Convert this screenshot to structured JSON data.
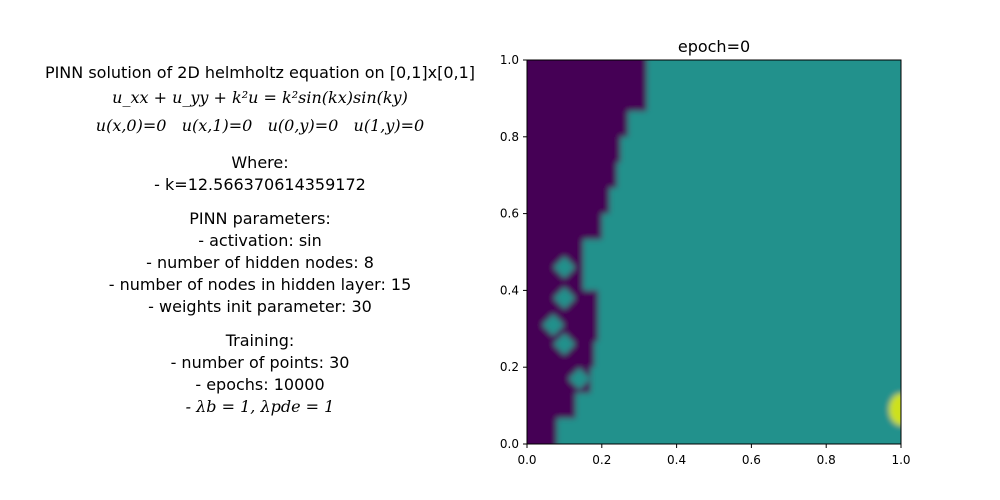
{
  "description": {
    "title": "PINN solution of 2D helmholtz equation on [0,1]x[0,1]",
    "equation": "u_xx + u_yy + k²u = k²sin(kx)sin(ky)",
    "boundary": "u(x,0)=0   u(x,1)=0   u(0,y)=0   u(1,y)=0",
    "where_header": "Where:",
    "k_value": "- k=12.566370614359172",
    "pinn_header": "PINN parameters:",
    "activation": "- activation: sin",
    "hidden_nodes": "- number of hidden nodes: 8",
    "nodes_in_layer": "- number of nodes in hidden layer: 15",
    "weights_init": "- weights init parameter: 30",
    "training_header": "Training:",
    "num_points": "- number of points: 30",
    "epochs": "- epochs: 10000",
    "lambdas": "- λb = 1, λpde = 1"
  },
  "chart_data": {
    "type": "heatmap",
    "title": "epoch=0",
    "xlim": [
      0.0,
      1.0
    ],
    "ylim": [
      0.0,
      1.0
    ],
    "xticks": [
      "0.0",
      "0.2",
      "0.4",
      "0.6",
      "0.8",
      "1.0"
    ],
    "yticks": [
      "0.0",
      "0.2",
      "0.4",
      "0.6",
      "0.8",
      "1.0"
    ],
    "colors": {
      "low": "#440154",
      "mid": "#21918c",
      "high": "#cde11d"
    },
    "boundary_y": [
      0.0,
      0.067,
      0.133,
      0.2,
      0.267,
      0.333,
      0.4,
      0.467,
      0.533,
      0.6,
      0.667,
      0.733,
      0.8,
      0.867,
      0.933,
      1.0
    ],
    "boundary_x": [
      0.08,
      0.13,
      0.17,
      0.18,
      0.19,
      0.19,
      0.15,
      0.15,
      0.2,
      0.22,
      0.24,
      0.25,
      0.27,
      0.32,
      0.32,
      0.32
    ],
    "islands": [
      {
        "x": 0.1,
        "y": 0.46
      },
      {
        "x": 0.1,
        "y": 0.38
      },
      {
        "x": 0.07,
        "y": 0.31
      },
      {
        "x": 0.1,
        "y": 0.26
      },
      {
        "x": 0.14,
        "y": 0.17
      }
    ],
    "hotspot": {
      "x": 1.0,
      "y": 0.09
    }
  }
}
